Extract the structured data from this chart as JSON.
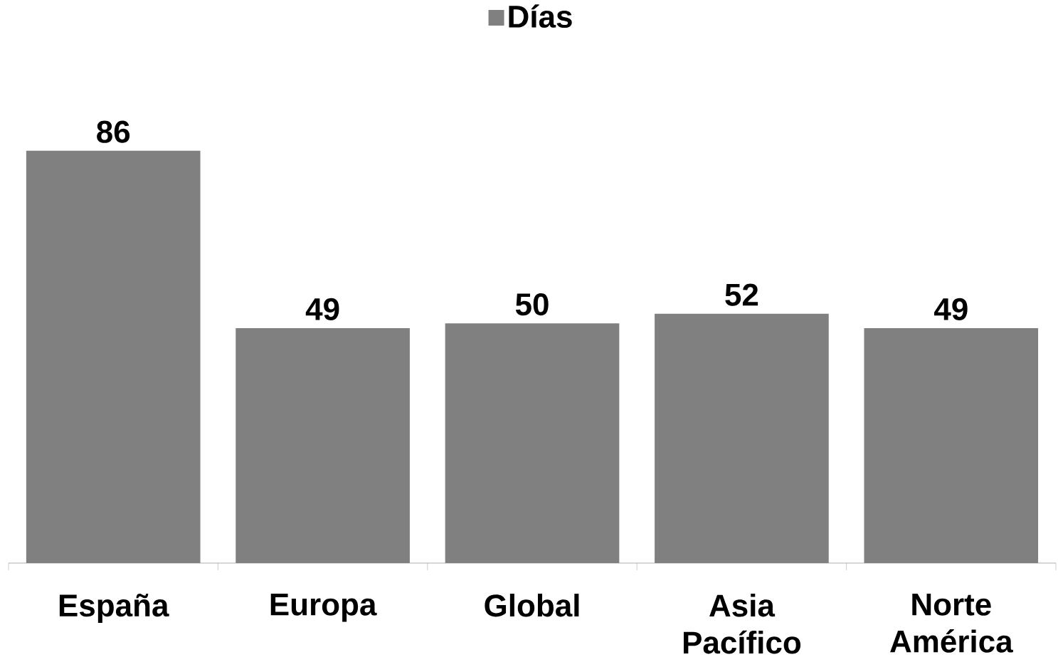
{
  "chart_data": {
    "type": "bar",
    "categories": [
      "España",
      "Europa",
      "Global",
      "Asia Pacífico",
      "Norte América"
    ],
    "series": [
      {
        "name": "Días",
        "color": "#808080",
        "values": [
          86,
          49,
          50,
          52,
          49
        ]
      }
    ],
    "data_labels": true,
    "legend": "top"
  }
}
